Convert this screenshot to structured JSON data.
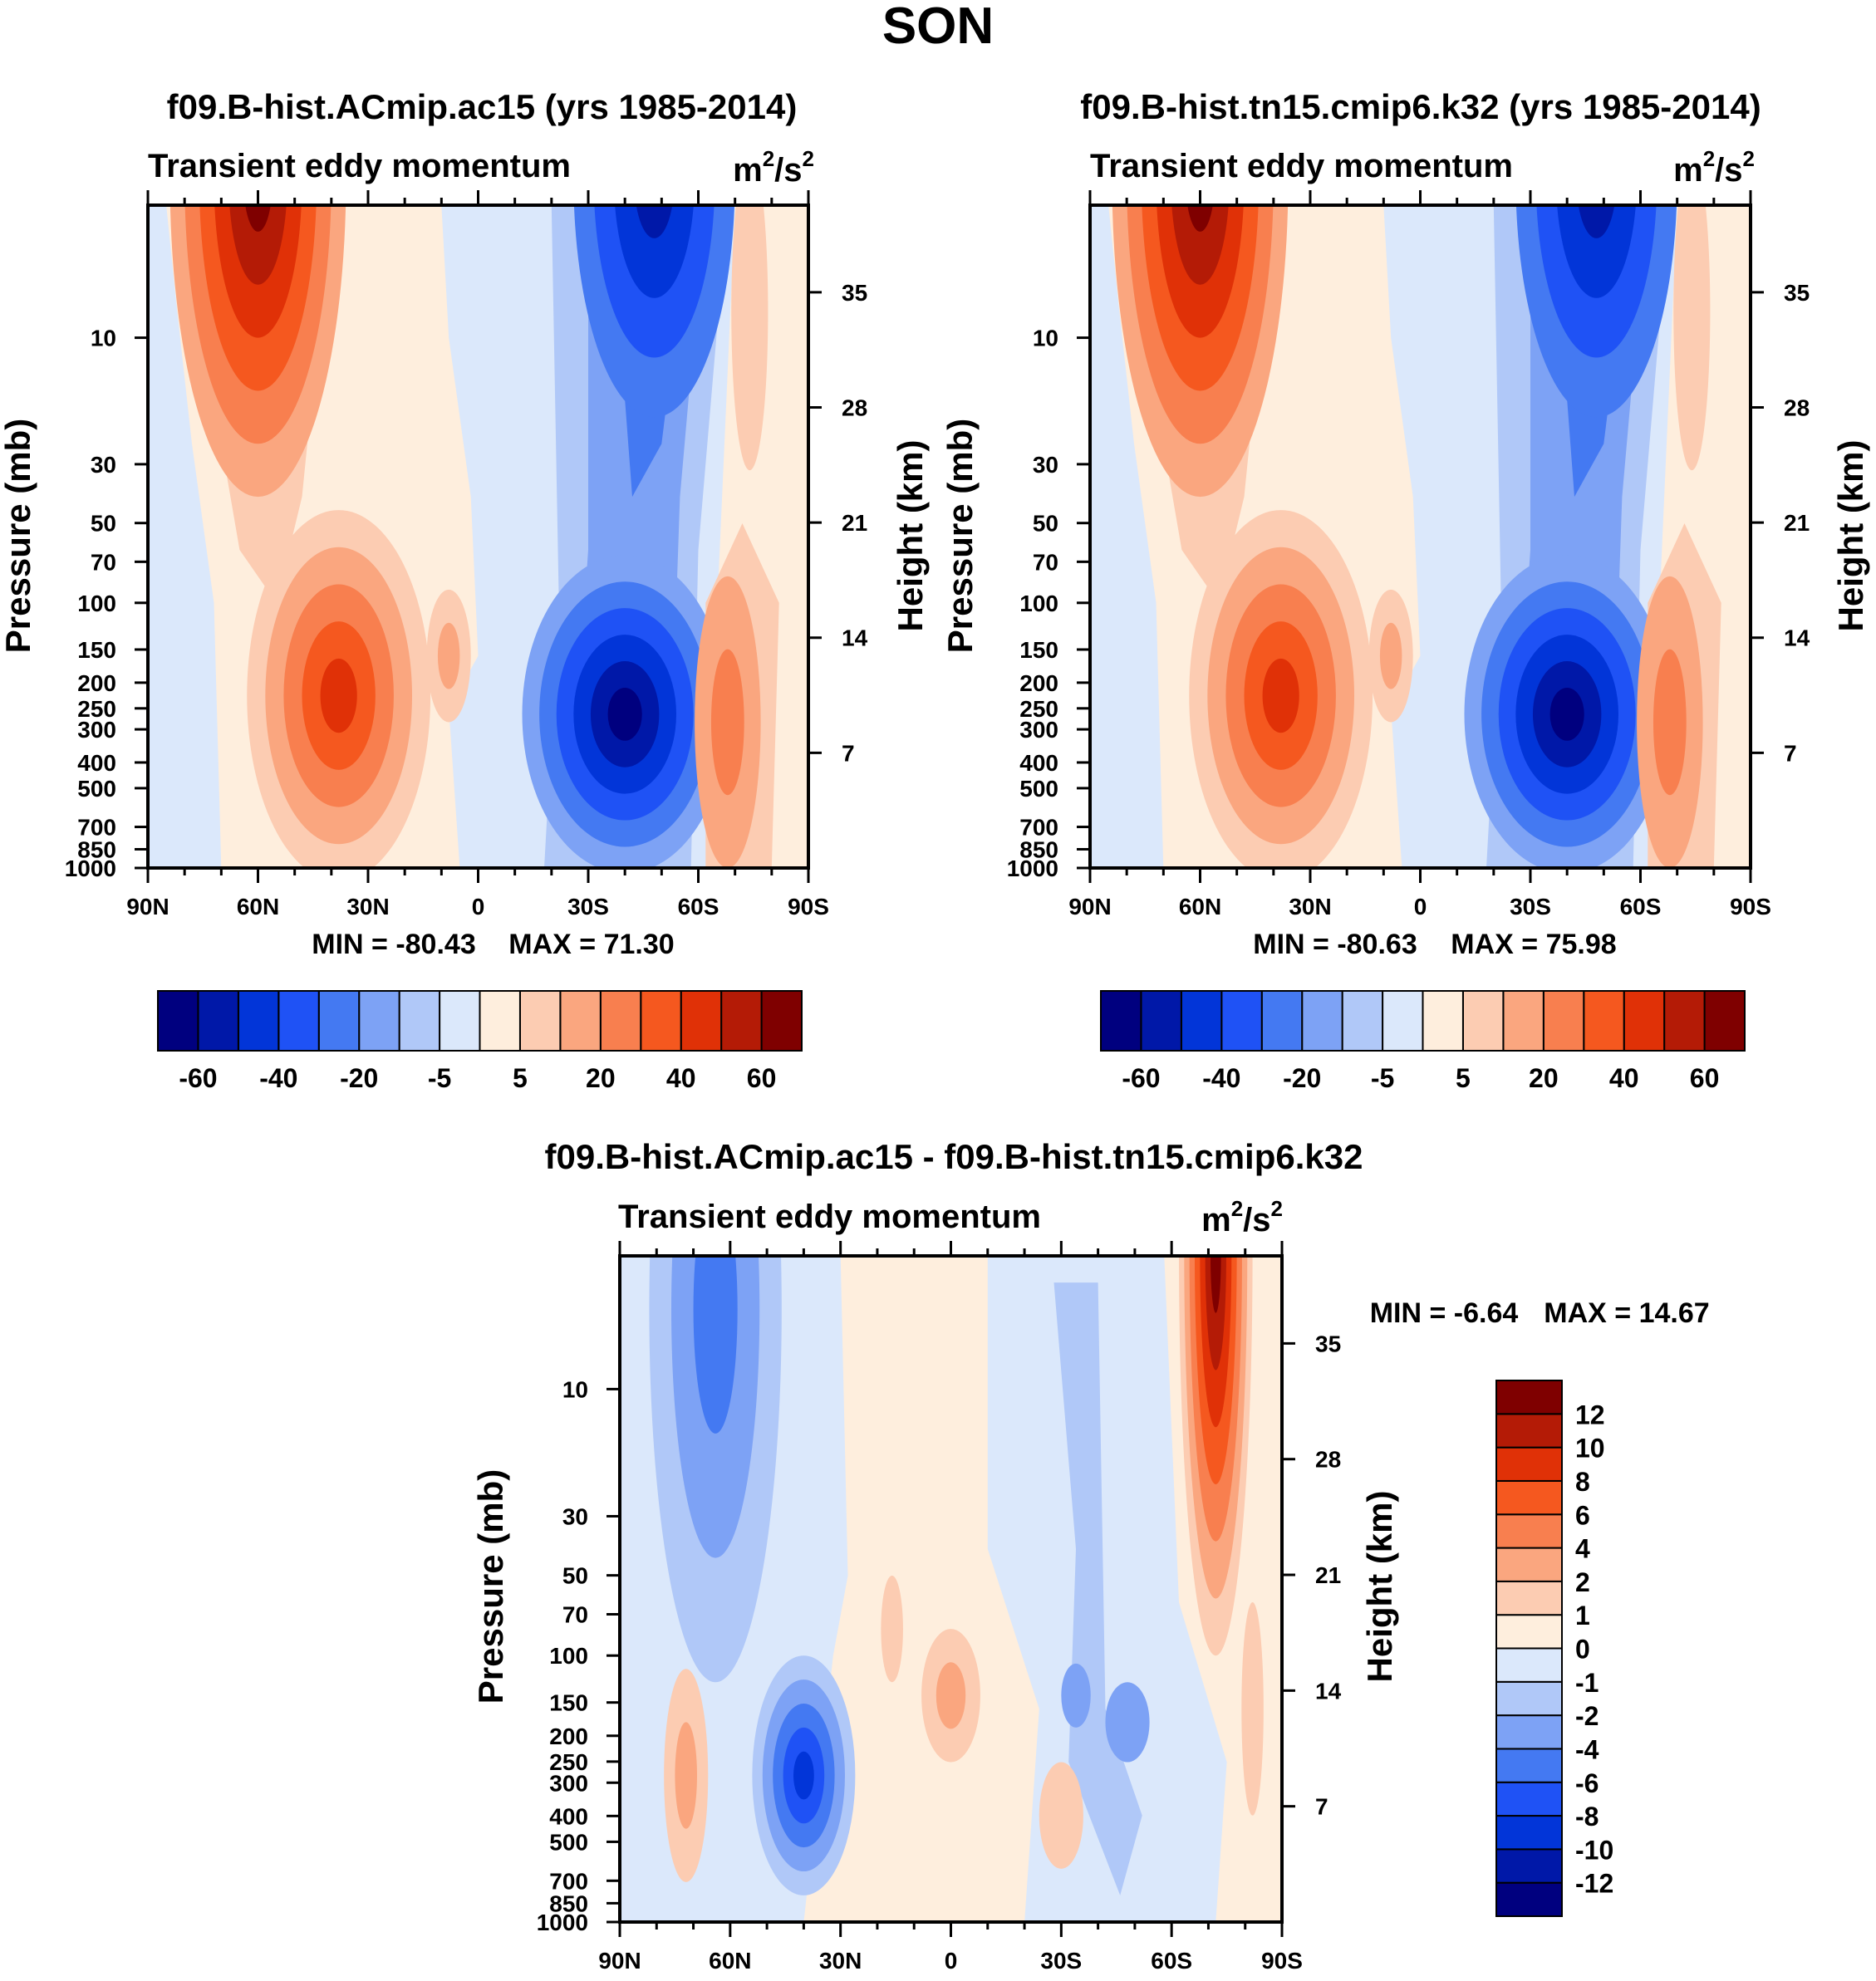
{
  "figure_title": "SON",
  "chart_data": [
    {
      "type": "heatmap",
      "title": "f09.B-hist.ACmip.ac15 (yrs 1985-2014)",
      "left_label": "Transient eddy momentum",
      "units": "m²/s²",
      "units_base": "m",
      "units_exp1": "2",
      "units_mid": "/s",
      "units_exp2": "2",
      "ylabel": "Pressure (mb)",
      "y2label": "Height (km)",
      "x_ticks": [
        "90N",
        "60N",
        "30N",
        "0",
        "30S",
        "60S",
        "90S"
      ],
      "y_ticks": [
        "10",
        "30",
        "50",
        "70",
        "100",
        "150",
        "200",
        "250",
        "300",
        "400",
        "500",
        "700",
        "850",
        "1000"
      ],
      "y2_ticks": [
        "35",
        "28",
        "21",
        "14",
        "7"
      ],
      "min_label": "MIN = -80.43",
      "max_label": "MAX =  71.30",
      "min": -80.43,
      "max": 71.3,
      "colorbar_labels": [
        "-60",
        "-40",
        "-20",
        "-5",
        "5",
        "20",
        "40",
        "60"
      ],
      "features": [
        {
          "lat": 60,
          "log_p": 0.3,
          "value": 70
        },
        {
          "lat": 38,
          "log_p": 2.35,
          "value": 40
        },
        {
          "lat": -40,
          "log_p": 2.42,
          "value": -80
        },
        {
          "lat": -48,
          "log_p": 0.3,
          "value": -55
        },
        {
          "lat": -68,
          "log_p": 2.45,
          "value": 22
        }
      ]
    },
    {
      "type": "heatmap",
      "title": "f09.B-hist.tn15.cmip6.k32 (yrs 1985-2014)",
      "left_label": "Transient eddy momentum",
      "units": "m²/s²",
      "units_base": "m",
      "units_exp1": "2",
      "units_mid": "/s",
      "units_exp2": "2",
      "ylabel": "Pressure (mb)",
      "y2label": "Height (km)",
      "x_ticks": [
        "90N",
        "60N",
        "30N",
        "0",
        "30S",
        "60S",
        "90S"
      ],
      "y_ticks": [
        "10",
        "30",
        "50",
        "70",
        "100",
        "150",
        "200",
        "250",
        "300",
        "400",
        "500",
        "700",
        "850",
        "1000"
      ],
      "y2_ticks": [
        "35",
        "28",
        "21",
        "14",
        "7"
      ],
      "min_label": "MIN = -80.63",
      "max_label": "MAX =  75.98",
      "min": -80.63,
      "max": 75.98,
      "colorbar_labels": [
        "-60",
        "-40",
        "-20",
        "-5",
        "5",
        "20",
        "40",
        "60"
      ],
      "features": [
        {
          "lat": 60,
          "log_p": 0.3,
          "value": 75
        },
        {
          "lat": 38,
          "log_p": 2.35,
          "value": 35
        },
        {
          "lat": -40,
          "log_p": 2.42,
          "value": -80
        },
        {
          "lat": -48,
          "log_p": 0.3,
          "value": -60
        },
        {
          "lat": -68,
          "log_p": 2.45,
          "value": 18
        }
      ]
    },
    {
      "type": "heatmap",
      "title": "f09.B-hist.ACmip.ac15 - f09.B-hist.tn15.cmip6.k32",
      "left_label": "Transient eddy momentum",
      "units": "m²/s²",
      "units_base": "m",
      "units_exp1": "2",
      "units_mid": "/s",
      "units_exp2": "2",
      "ylabel": "Pressure (mb)",
      "y2label": "Height (km)",
      "x_ticks": [
        "90N",
        "60N",
        "30N",
        "0",
        "30S",
        "60S",
        "90S"
      ],
      "y_ticks": [
        "10",
        "30",
        "50",
        "70",
        "100",
        "150",
        "200",
        "250",
        "300",
        "400",
        "500",
        "700",
        "850",
        "1000"
      ],
      "y2_ticks": [
        "35",
        "28",
        "21",
        "14",
        "7"
      ],
      "min_label": "MIN =  -6.64",
      "max_label": "MAX =  14.67",
      "min": -6.64,
      "max": 14.67,
      "colorbar_labels": [
        "12",
        "10",
        "8",
        "6",
        "4",
        "2",
        "1",
        "0",
        "-1",
        "-2",
        "-4",
        "-6",
        "-8",
        "-10",
        "-12"
      ],
      "features": [
        {
          "lat": -72,
          "log_p": 0.3,
          "value": 14
        },
        {
          "lat": 64,
          "log_p": 0.6,
          "value": -5
        },
        {
          "lat": 40,
          "log_p": 2.45,
          "value": -6
        },
        {
          "lat": 0,
          "log_p": 2.2,
          "value": 2
        },
        {
          "lat": 72,
          "log_p": 2.45,
          "value": 2
        },
        {
          "lat": -32,
          "log_p": 2.2,
          "value": -2
        }
      ]
    }
  ],
  "colors": {
    "blues": [
      "#00007f",
      "#0018a8",
      "#0235d8",
      "#1f52f5",
      "#4479f2",
      "#7da2f5",
      "#b0c8f8",
      "#dbe8fb"
    ],
    "reds": [
      "#feeedd",
      "#fcccb2",
      "#faa67f",
      "#f87f4f",
      "#f5581f",
      "#e03107",
      "#b41b06",
      "#7f0000"
    ]
  }
}
